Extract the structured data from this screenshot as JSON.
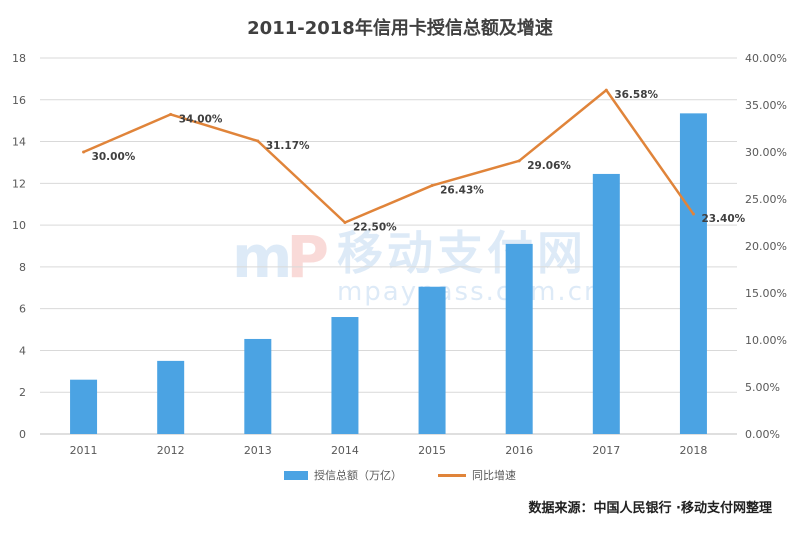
{
  "chart_data": {
    "type": "bar",
    "title": "2011-2018年信用卡授信总额及增速",
    "categories": [
      "2011",
      "2012",
      "2013",
      "2014",
      "2015",
      "2016",
      "2017",
      "2018"
    ],
    "series": [
      {
        "name": "授信总额（万亿）",
        "type": "bar",
        "axis": "left",
        "color": "#4ba3e3",
        "values": [
          2.6,
          3.5,
          4.55,
          5.6,
          7.05,
          9.1,
          12.45,
          15.35
        ]
      },
      {
        "name": "同比增速",
        "type": "line",
        "axis": "right",
        "color": "#e0843a",
        "values": [
          30.0,
          34.0,
          31.17,
          22.5,
          26.43,
          29.06,
          36.58,
          23.4
        ],
        "labels": [
          "30.00%",
          "34.00%",
          "31.17%",
          "22.50%",
          "26.43%",
          "29.06%",
          "36.58%",
          "23.40%"
        ]
      }
    ],
    "y_left": {
      "min": 0,
      "max": 18,
      "ticks": [
        "0",
        "2",
        "4",
        "6",
        "8",
        "10",
        "12",
        "14",
        "16",
        "18"
      ]
    },
    "y_right": {
      "min": 0,
      "max": 40,
      "ticks": [
        "0.00%",
        "5.00%",
        "10.00%",
        "15.00%",
        "20.00%",
        "25.00%",
        "30.00%",
        "35.00%",
        "40.00%"
      ]
    },
    "grid": true,
    "legend_position": "bottom"
  },
  "source": "数据来源：中国人民银行 ·移动支付网整理",
  "watermark": {
    "logo_left": "m",
    "logo_right": "P",
    "name": "移动支付网",
    "url": "mpaypass.com.cn"
  }
}
